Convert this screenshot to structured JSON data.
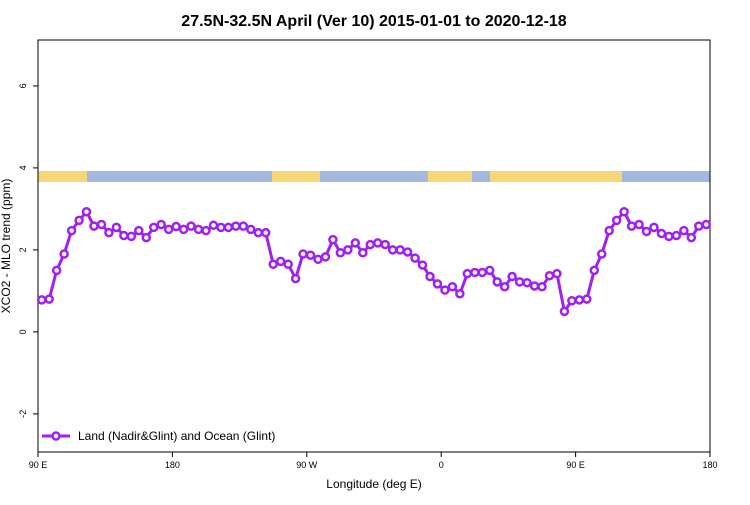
{
  "chart_data": {
    "type": "line",
    "title": "27.5N-32.5N April (Ver 10)   2015-01-01 to 2020-12-18",
    "x_label": "Longitude (deg E)",
    "y_label": "XCO2 - MLO trend (ppm)",
    "xlim": [
      90,
      540
    ],
    "xticks": [
      {
        "value": 90,
        "label": "90 E"
      },
      180,
      {
        "value": 270,
        "label": "90 W"
      },
      {
        "value": 360,
        "label": "0"
      },
      {
        "value": 450,
        "label": "90 E"
      },
      {
        "value": 540,
        "label": "180"
      }
    ],
    "ylim": [
      -2.93,
      7.12
    ],
    "yticks": [
      -2,
      0,
      2,
      4,
      6
    ],
    "legend": "bottom-left",
    "x": [
      92.5,
      97.5,
      102.5,
      107.5,
      112.5,
      117.5,
      122.5,
      127.5,
      132.5,
      137.5,
      142.5,
      147.5,
      152.5,
      157.5,
      162.5,
      167.5,
      172.5,
      177.5,
      182.5,
      187.5,
      192.5,
      197.5,
      202.5,
      207.5,
      212.5,
      217.5,
      222.5,
      227.5,
      232.5,
      237.5,
      242.5,
      247.5,
      252.5,
      257.5,
      262.5,
      267.5,
      272.5,
      277.5,
      282.5,
      287.5,
      292.5,
      297.5,
      302.5,
      307.5,
      312.5,
      317.5,
      322.5,
      327.5,
      332.5,
      337.5,
      342.5,
      347.5,
      352.5,
      357.5,
      362.5,
      367.5,
      372.5,
      377.5,
      382.5,
      387.5,
      392.5,
      397.5,
      402.5,
      407.5,
      412.5,
      417.5,
      422.5,
      427.5,
      432.5,
      437.5,
      442.5,
      447.5,
      452.5,
      457.5,
      462.5,
      467.5,
      472.5,
      477.5,
      482.5,
      487.5,
      492.5,
      497.5,
      502.5,
      507.5,
      512.5,
      517.5,
      522.5,
      527.5,
      532.5,
      537.5
    ],
    "series": [
      {
        "name": "Land (Nadir&Glint) and Ocean (Glint)",
        "color": "#a020f0",
        "values": [
          0.78,
          0.8,
          1.5,
          1.9,
          2.47,
          2.72,
          2.93,
          2.58,
          2.62,
          2.42,
          2.55,
          2.35,
          2.33,
          2.47,
          2.3,
          2.55,
          2.62,
          2.5,
          2.57,
          2.5,
          2.58,
          2.5,
          2.47,
          2.6,
          2.55,
          2.55,
          2.58,
          2.58,
          2.5,
          2.42,
          2.42,
          1.65,
          1.72,
          1.65,
          1.3,
          1.9,
          1.87,
          1.77,
          1.83,
          2.25,
          1.93,
          2.0,
          2.17,
          1.93,
          2.13,
          2.17,
          2.13,
          2.0,
          2.0,
          1.95,
          1.8,
          1.63,
          1.35,
          1.17,
          1.02,
          1.1,
          0.93,
          1.42,
          1.45,
          1.45,
          1.5,
          1.22,
          1.1,
          1.35,
          1.22,
          1.2,
          1.12,
          1.1,
          1.37,
          1.42,
          0.5,
          0.76,
          0.78,
          0.8,
          1.5,
          1.9,
          2.47,
          2.72,
          2.93,
          2.58,
          2.62,
          2.45,
          2.55,
          2.4,
          2.33,
          2.35,
          2.47,
          2.3,
          2.58,
          2.62
        ]
      }
    ]
  }
}
